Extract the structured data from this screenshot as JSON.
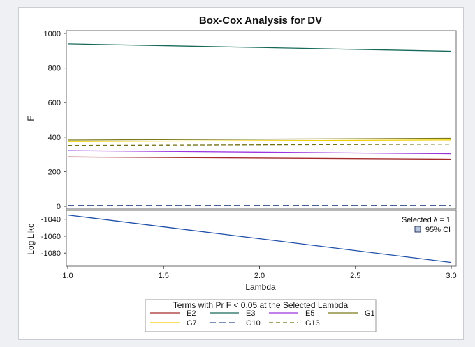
{
  "chart_data": {
    "type": "line",
    "title": "Box-Cox Analysis for DV",
    "xlabel": "Lambda",
    "xlim": [
      1.0,
      3.0
    ],
    "x_ticks": [
      "1.0",
      "1.5",
      "2.0",
      "2.5",
      "3.0"
    ],
    "panels": [
      {
        "ylabel": "F",
        "ylim": [
          0,
          1000
        ],
        "y_ticks": [
          "0",
          "200",
          "400",
          "600",
          "800",
          "1000"
        ],
        "series": [
          {
            "name": "E2",
            "color": "#a52a2a",
            "dash": "solid",
            "x": [
              1.0,
              3.0
            ],
            "y": [
              285,
              272
            ]
          },
          {
            "name": "E3",
            "color": "#16695a",
            "dash": "solid",
            "x": [
              1.0,
              3.0
            ],
            "y": [
              940,
              897
            ]
          },
          {
            "name": "E5",
            "color": "#9b35e0",
            "dash": "solid",
            "x": [
              1.0,
              3.0
            ],
            "y": [
              322,
              304
            ]
          },
          {
            "name": "G1",
            "color": "#7a7a1a",
            "dash": "solid",
            "x": [
              1.0,
              3.0
            ],
            "y": [
              383,
              393
            ]
          },
          {
            "name": "G7",
            "color": "#f0d000",
            "dash": "solid",
            "x": [
              1.0,
              3.0
            ],
            "y": [
              374,
              384
            ]
          },
          {
            "name": "G10",
            "color": "#2e4a8a",
            "dash": "long",
            "x": [
              1.0,
              3.0
            ],
            "y": [
              5,
              5
            ]
          },
          {
            "name": "G13",
            "color": "#707010",
            "dash": "dash",
            "x": [
              1.0,
              3.0
            ],
            "y": [
              352,
              360
            ]
          }
        ]
      },
      {
        "ylabel": "Log Like",
        "ylim": [
          -1093,
          -1032
        ],
        "y_ticks": [
          "-1040",
          "-1060",
          "-1080"
        ],
        "series": [
          {
            "name": "Log Like",
            "color": "#2050a8",
            "dash": "solid",
            "x": [
              1.0,
              3.0
            ],
            "y": [
              -1035,
              -1091
            ]
          }
        ]
      }
    ],
    "annotations": {
      "selected_lambda": "Selected λ = 1",
      "ci_label": "95% CI"
    },
    "legend": {
      "title": "Terms with Pr F < 0.05 at the Selected Lambda",
      "placement": "bottom",
      "items": [
        "E2",
        "E3",
        "E5",
        "G1",
        "G7",
        "G10",
        "G13"
      ]
    }
  }
}
